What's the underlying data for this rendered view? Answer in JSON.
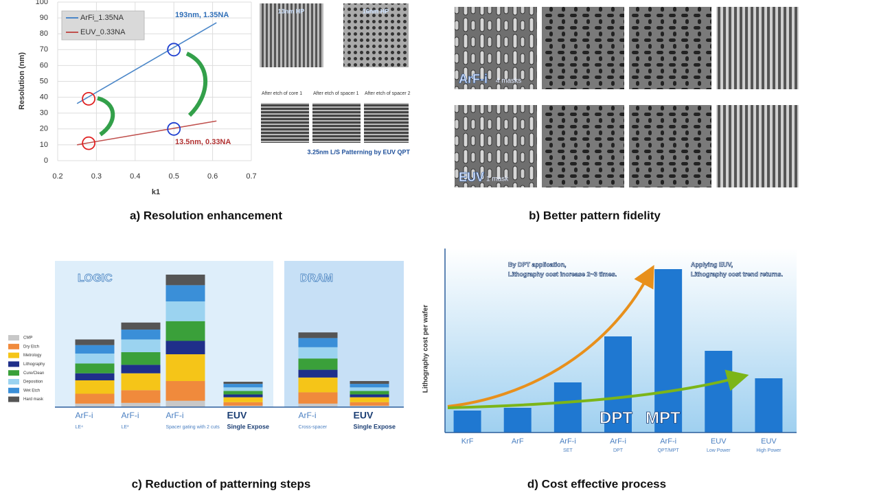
{
  "chart_data": [
    {
      "type": "line",
      "caption": "a) Resolution enhancement",
      "xlabel": "k1",
      "ylabel": "Resolution (nm)",
      "xlim": [
        0.2,
        0.7
      ],
      "xticks": [
        0.2,
        0.3,
        0.4,
        0.5,
        0.6,
        0.7
      ],
      "ylim": [
        0,
        100
      ],
      "yticks": [
        0,
        10,
        20,
        30,
        40,
        50,
        60,
        70,
        80,
        90,
        100
      ],
      "grid": true,
      "legend": "top-left",
      "series": [
        {
          "name": "ArFi_1.35NA",
          "color": "#4a86c8",
          "x": [
            0.25,
            0.61
          ],
          "values": [
            36,
            87
          ]
        },
        {
          "name": "EUV_0.33NA",
          "color": "#c0504d",
          "x": [
            0.25,
            0.61
          ],
          "values": [
            10,
            25
          ]
        }
      ],
      "annotations": [
        "193nm, 1.35NA",
        "13.5nm, 0.33NA"
      ],
      "highlights": {
        "color": "#e02020",
        "x": [
          0.28,
          0.5,
          0.28,
          0.5
        ],
        "values": [
          39,
          70,
          11,
          20
        ]
      }
    },
    {
      "type": "stacked_bar",
      "caption": "c) Reduction of patterning  steps",
      "groups": [
        "LOGIC",
        "DRAM"
      ],
      "legend": "left",
      "categories": [
        "ArF-i",
        "ArF-i",
        "ArF-i",
        "EUV",
        "ArF-i",
        "EUV"
      ],
      "subcategories": [
        "LE⁴",
        "LE³",
        "Spacer gating with 2 cuts",
        "Single Expose",
        "Cross-spacer",
        "Single Expose"
      ],
      "series": [
        {
          "name": "CMP",
          "color": "#c8c8c8",
          "values": [
            5,
            6,
            9,
            2,
            5,
            2
          ]
        },
        {
          "name": "Dry Etch",
          "color": "#f08a3c",
          "values": [
            14,
            18,
            28,
            5,
            16,
            5
          ]
        },
        {
          "name": "Metrology",
          "color": "#f5c518",
          "values": [
            19,
            24,
            38,
            7,
            21,
            7
          ]
        },
        {
          "name": "Lithography",
          "color": "#1f2f8a",
          "values": [
            10,
            12,
            19,
            4,
            11,
            4
          ]
        },
        {
          "name": "Cure/Clean",
          "color": "#3aa03a",
          "values": [
            14,
            18,
            28,
            5,
            16,
            5
          ]
        },
        {
          "name": "Deposition",
          "color": "#9bd3f0",
          "values": [
            14,
            18,
            28,
            5,
            16,
            5
          ]
        },
        {
          "name": "Wet Etch",
          "color": "#3a8fd8",
          "values": [
            12,
            14,
            23,
            5,
            13,
            5
          ]
        },
        {
          "name": "Hard mask",
          "color": "#555555",
          "values": [
            8,
            10,
            15,
            3,
            8,
            4
          ]
        }
      ]
    },
    {
      "type": "bar",
      "caption": "d) Cost effective process",
      "ylabel": "Lithography cost per wafer",
      "color": "#1f78d1",
      "categories": [
        "KrF",
        "ArF",
        "ArF-i",
        "ArF-i",
        "ArF-i",
        "EUV",
        "EUV"
      ],
      "subcategories": [
        null,
        null,
        "SET",
        "DPT",
        "QPT/MPT",
        "Low Power",
        "High Power"
      ],
      "values": [
        32,
        36,
        73,
        140,
        238,
        119,
        79
      ],
      "notes": [
        "By DPT application,",
        "Lithography cost increase 2~3 times.",
        "Applying EUV,",
        "Lithography cost trend returns."
      ],
      "labels": [
        "DPT",
        "MPT"
      ]
    }
  ],
  "panel_a_images": {
    "labels": [
      "13nm HP",
      "16nm HP",
      "After etch of core 1",
      "After etch of spacer 1",
      "After etch of spacer 2",
      "3.25nm L/S Patterning by EUV QPT"
    ]
  },
  "panel_b": {
    "caption": "b) Better pattern fidelity",
    "rows": [
      {
        "label": "ArF-i",
        "note": "4 masks"
      },
      {
        "label": "EUV",
        "note": "1 mask"
      }
    ]
  }
}
